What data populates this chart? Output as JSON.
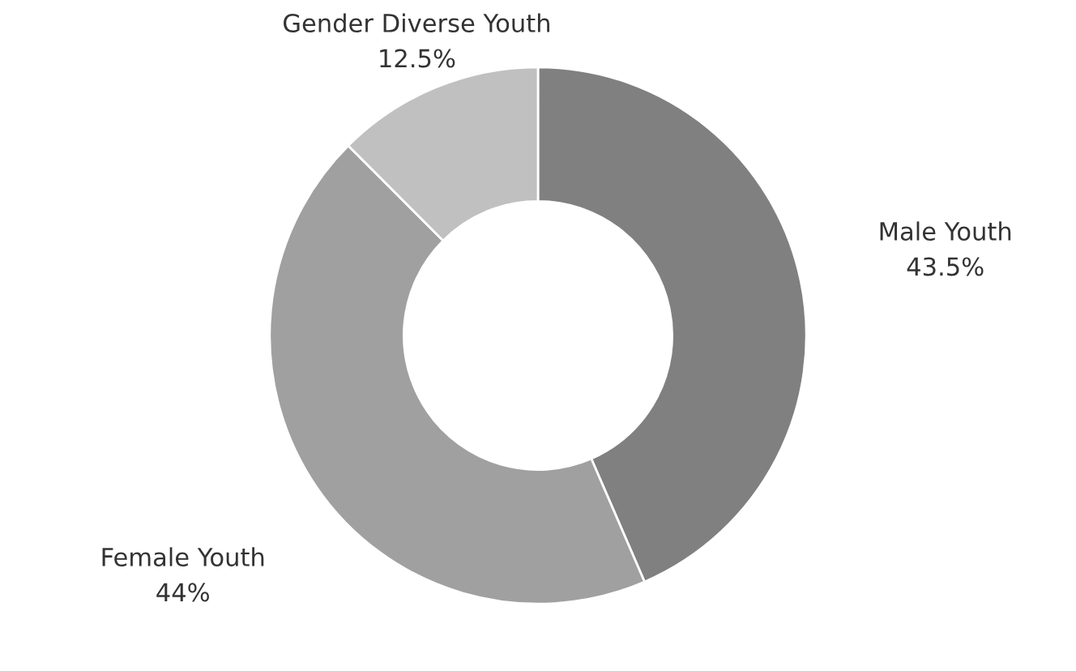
{
  "chart_data": {
    "type": "donut",
    "categories": [
      "Male Youth",
      "Female Youth",
      "Gender Diverse Youth"
    ],
    "values": [
      43.5,
      44,
      12.5
    ],
    "colors": [
      "#808080",
      "#a0a0a0",
      "#c0c0c0"
    ],
    "value_labels": [
      "43.5%",
      "44%",
      "12.5%"
    ]
  }
}
